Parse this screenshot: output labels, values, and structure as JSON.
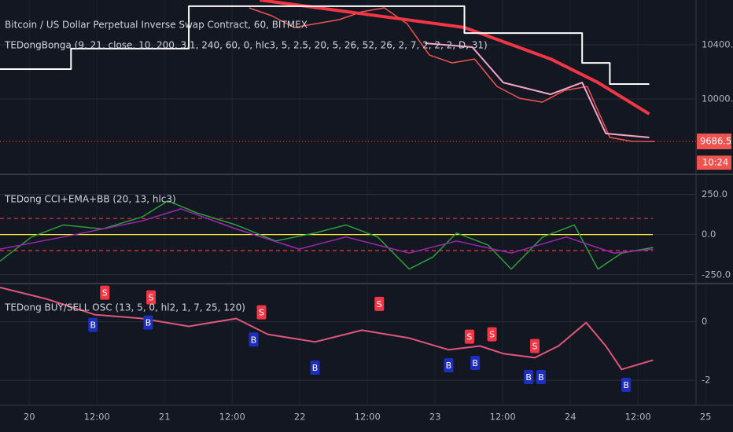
{
  "chart_data": [
    {
      "type": "line",
      "title": "Bitcoin / US Dollar Perpetual Inverse Swap Contract, 60, BITMEX",
      "subtitle": "TEDongBonga (9, 21, close, 10, 200, 3.1, 240, 60, 0, hlc3, 5, 2.5, 20, 5, 26, 52, 26, 2, 7, 2, 2, 2, D, 31)",
      "countdown": "10:24",
      "ylim": [
        9455,
        10730
      ],
      "yticks": [
        {
          "value": 10000,
          "label": "10000.0"
        },
        {
          "value": 10400,
          "label": "10400.0"
        }
      ],
      "grid": true,
      "series": [
        {
          "color": "#ef5350",
          "width": 1.5,
          "x": [
            39,
            43,
            47,
            51,
            55,
            59,
            63,
            67,
            71,
            75,
            79,
            83,
            87,
            91,
            95,
            99,
            103,
            107,
            111
          ],
          "values": [
            10672,
            10614,
            10527,
            10556,
            10585,
            10643,
            10672,
            10556,
            10324,
            10266,
            10295,
            10092,
            10005,
            9976,
            10063,
            10092,
            9716,
            9687,
            9686.5
          ]
        },
        {
          "color": "#f23645",
          "width": 4,
          "x": [
            40.9,
            77.2,
            92.5,
            100.9,
            110
          ],
          "values": [
            10730,
            10527,
            10295,
            10121,
            9889
          ]
        },
        {
          "color": "#f4a6c8",
          "width": 2,
          "x": [
            70.2,
            78.6,
            84.1,
            92.5,
            98.1,
            102.3,
            110
          ],
          "values": [
            10411,
            10382,
            10121,
            10034,
            10121,
            9745,
            9716
          ]
        },
        {
          "color": "#ffffff",
          "width": 2,
          "x": [
            -5.2,
            7.4,
            7.4,
            28.3,
            28.3,
            77.2,
            77.2,
            98.1,
            98.1,
            103,
            103,
            110
          ],
          "values": [
            10220,
            10220,
            10371,
            10371,
            10684,
            10684,
            10486,
            10486,
            10266,
            10266,
            10110,
            10110
          ]
        }
      ]
    },
    {
      "type": "line",
      "title": "TEDong CCI+EMA+BB (20, 13, hlc3)",
      "ylim": [
        -300,
        365
      ],
      "yticks": [
        {
          "value": 250,
          "label": "250.0"
        },
        {
          "value": 0,
          "label": "0.0"
        },
        {
          "value": -250,
          "label": "-250.0"
        }
      ],
      "grid": true,
      "hlines": [
        {
          "value": 100,
          "color": "#f23645",
          "dash": true
        },
        {
          "value": 0,
          "color": "#ffeb3b",
          "dash": false
        },
        {
          "value": -100,
          "color": "#f23645",
          "dash": true
        }
      ],
      "series": [
        {
          "color": "#2e9e3a",
          "width": 1.5,
          "x": [
            -5.2,
            0.4,
            6,
            13,
            20,
            24.6,
            29.7,
            36.7,
            43.7,
            50.7,
            56.2,
            61.8,
            67.4,
            71.6,
            75.8,
            81.4,
            85.5,
            91.1,
            96.7,
            100.9,
            105.1,
            110.7
          ],
          "values": [
            -165,
            -15,
            60,
            35,
            110,
            210,
            135,
            60,
            -40,
            10,
            60,
            -15,
            -215,
            -140,
            10,
            -65,
            -215,
            -15,
            60,
            -215,
            -115,
            -80
          ]
        },
        {
          "color": "#9c27b0",
          "width": 1.5,
          "x": [
            -5.2,
            6,
            20,
            26.9,
            36.7,
            47.9,
            56.2,
            67.4,
            75.8,
            85.5,
            95.3,
            103.7,
            110.7
          ],
          "values": [
            -90,
            -15,
            85,
            160,
            35,
            -90,
            -15,
            -115,
            -40,
            -115,
            -15,
            -115,
            -90
          ]
        }
      ]
    },
    {
      "type": "line",
      "title": "TEDong BUY/SELL OSC (13, 5, 0, hl2, 1, 7, 25, 120)",
      "ylim": [
        -2.83,
        1.25
      ],
      "yticks": [
        0,
        -2
      ],
      "grid": true,
      "xlim": [
        -5.2,
        118.3
      ],
      "xticks": [
        {
          "value": 0,
          "label": "20"
        },
        {
          "value": 12,
          "label": "12:00"
        },
        {
          "value": 24,
          "label": "21"
        },
        {
          "value": 36,
          "label": "12:00"
        },
        {
          "value": 48,
          "label": "22"
        },
        {
          "value": 60,
          "label": "12:00"
        },
        {
          "value": 72,
          "label": "23"
        },
        {
          "value": 84,
          "label": "12:00"
        },
        {
          "value": 96,
          "label": "24"
        },
        {
          "value": 108,
          "label": "12:00"
        },
        {
          "value": 120,
          "label": "25"
        }
      ],
      "series": [
        {
          "color": "#e0567a",
          "width": 2,
          "x": [
            -5.2,
            3.2,
            11.6,
            20,
            28.3,
            36.7,
            42.3,
            50.7,
            59,
            67.4,
            74.4,
            80,
            84.1,
            89.7,
            93.9,
            98.8,
            102.3,
            105.1,
            110.7
          ],
          "values": [
            1.17,
            0.77,
            0.24,
            0.11,
            -0.16,
            0.11,
            -0.43,
            -0.69,
            -0.29,
            -0.56,
            -0.96,
            -0.83,
            -1.09,
            -1.23,
            -0.83,
            -0.03,
            -0.83,
            -1.63,
            -1.31
          ]
        }
      ],
      "signals": [
        {
          "label": "B",
          "x": 11.3,
          "y": -0.11
        },
        {
          "label": "S",
          "x": 13.4,
          "y": 0.99
        },
        {
          "label": "B",
          "x": 21.1,
          "y": -0.03
        },
        {
          "label": "S",
          "x": 21.6,
          "y": 0.83
        },
        {
          "label": "B",
          "x": 39.8,
          "y": -0.61
        },
        {
          "label": "S",
          "x": 41.2,
          "y": 0.32
        },
        {
          "label": "B",
          "x": 50.7,
          "y": -1.57
        },
        {
          "label": "S",
          "x": 62.1,
          "y": 0.61
        },
        {
          "label": "B",
          "x": 74.4,
          "y": -1.49
        },
        {
          "label": "S",
          "x": 78.1,
          "y": -0.51
        },
        {
          "label": "B",
          "x": 79.1,
          "y": -1.41
        },
        {
          "label": "S",
          "x": 82.1,
          "y": -0.43
        },
        {
          "label": "B",
          "x": 88.6,
          "y": -1.89
        },
        {
          "label": "S",
          "x": 89.7,
          "y": -0.83
        },
        {
          "label": "B",
          "x": 90.8,
          "y": -1.89
        },
        {
          "label": "B",
          "x": 105.9,
          "y": -2.16
        }
      ]
    }
  ]
}
